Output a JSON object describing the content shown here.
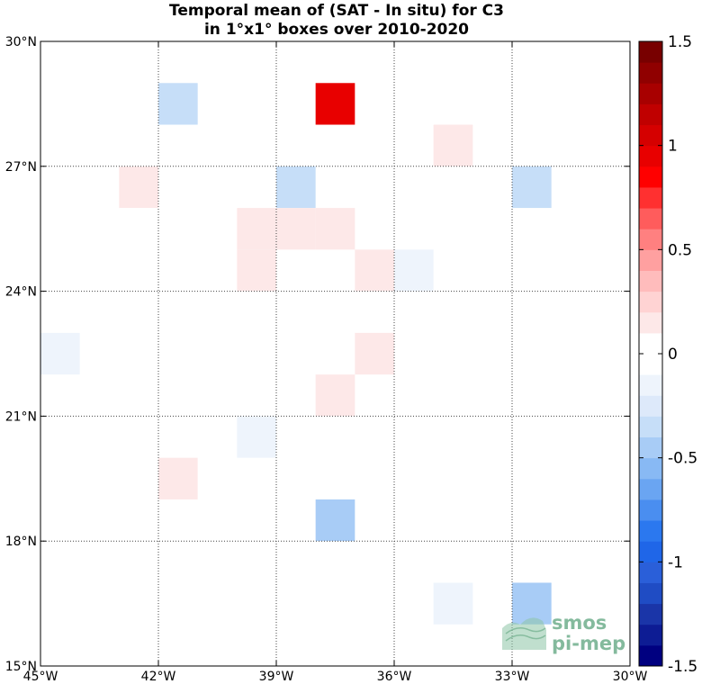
{
  "chart_data": {
    "type": "heatmap",
    "title": [
      "Temporal mean of (SAT - In situ) for C3",
      "in 1°x1° boxes over 2010-2020"
    ],
    "xlim": [
      -45,
      -30
    ],
    "ylim": [
      15,
      30
    ],
    "x_ticks": [
      {
        "value": -45,
        "label": "45°W"
      },
      {
        "value": -42,
        "label": "42°W"
      },
      {
        "value": -39,
        "label": "39°W"
      },
      {
        "value": -36,
        "label": "36°W"
      },
      {
        "value": -33,
        "label": "33°W"
      },
      {
        "value": -30,
        "label": "30°W"
      }
    ],
    "y_ticks": [
      {
        "value": 15,
        "label": "15°N"
      },
      {
        "value": 18,
        "label": "18°N"
      },
      {
        "value": 21,
        "label": "21°N"
      },
      {
        "value": 24,
        "label": "24°N"
      },
      {
        "value": 27,
        "label": "27°N"
      },
      {
        "value": 30,
        "label": "30°N"
      }
    ],
    "grid": true,
    "cells": [
      {
        "lon": -42,
        "lat": 28,
        "value": -0.35
      },
      {
        "lon": -38,
        "lat": 28,
        "value": 0.95
      },
      {
        "lon": -35,
        "lat": 27,
        "value": 0.15
      },
      {
        "lon": -43,
        "lat": 26,
        "value": 0.15
      },
      {
        "lon": -39,
        "lat": 26,
        "value": -0.35
      },
      {
        "lon": -33,
        "lat": 26,
        "value": -0.35
      },
      {
        "lon": -40,
        "lat": 25,
        "value": 0.15
      },
      {
        "lon": -39,
        "lat": 25,
        "value": 0.15
      },
      {
        "lon": -38,
        "lat": 25,
        "value": 0.15
      },
      {
        "lon": -40,
        "lat": 24,
        "value": 0.15
      },
      {
        "lon": -37,
        "lat": 24,
        "value": 0.15
      },
      {
        "lon": -36,
        "lat": 24,
        "value": -0.15
      },
      {
        "lon": -45,
        "lat": 22,
        "value": -0.15
      },
      {
        "lon": -37,
        "lat": 22,
        "value": 0.15
      },
      {
        "lon": -38,
        "lat": 21,
        "value": 0.15
      },
      {
        "lon": -40,
        "lat": 20,
        "value": -0.15
      },
      {
        "lon": -42,
        "lat": 19,
        "value": 0.15
      },
      {
        "lon": -38,
        "lat": 18,
        "value": -0.45
      },
      {
        "lon": -35,
        "lat": 16,
        "value": -0.15
      },
      {
        "lon": -33,
        "lat": 16,
        "value": -0.45
      }
    ],
    "colorbar": {
      "min": -1.5,
      "max": 1.5,
      "levels": 30,
      "tick_values": [
        -1.5,
        -1,
        -0.5,
        0,
        0.5,
        1,
        1.5
      ],
      "tick_labels": [
        "-1.5",
        "-1",
        "-0.5",
        "0",
        "0.5",
        "1",
        "1.5"
      ],
      "neg_colors": [
        "#000080",
        "#0d1c94",
        "#1a35a8",
        "#1f4cc4",
        "#2a5fd9",
        "#1f66e8",
        "#2b78ef",
        "#4a8ef0",
        "#6aa5f2",
        "#88b9f4",
        "#a8ccf6",
        "#c6def8",
        "#dde9fa",
        "#eef4fc",
        "#ffffff"
      ],
      "pos_colors": [
        "#ffffff",
        "#fde8e8",
        "#ffd3d3",
        "#ffbcbc",
        "#ffa0a0",
        "#ff8080",
        "#ff5c5c",
        "#ff3030",
        "#ff0000",
        "#e80000",
        "#d50000",
        "#c00000",
        "#a80000",
        "#900000",
        "#780000"
      ]
    },
    "watermark": [
      "smos",
      "pi-mep"
    ]
  }
}
